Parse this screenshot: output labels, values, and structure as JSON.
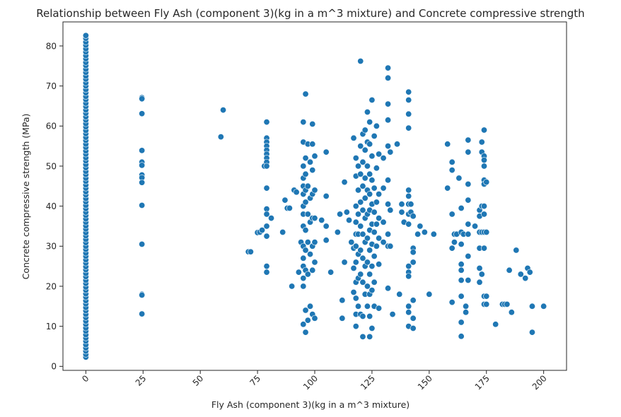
{
  "chart_data": {
    "type": "scatter",
    "title": "Relationship between Fly Ash (component 3)(kg in a m^3 mixture) and Concrete compressive strength",
    "xlabel": "Fly Ash (component 3)(kg in a m^3 mixture)",
    "ylabel": "Concrete compressive strength (MPa)",
    "xlim": [
      -10,
      210
    ],
    "ylim": [
      -1,
      86
    ],
    "xticks": [
      0,
      25,
      50,
      75,
      100,
      125,
      150,
      175,
      200
    ],
    "yticks": [
      0,
      10,
      20,
      30,
      40,
      50,
      60,
      70,
      80
    ],
    "x_tick_rotation": 45,
    "grid": false,
    "legend": "none",
    "marker_color": "#1f77b4",
    "points": [
      [
        0,
        2.3
      ],
      [
        0,
        3.0
      ],
      [
        0,
        3.8
      ],
      [
        0,
        4.6
      ],
      [
        0,
        5.4
      ],
      [
        0,
        6.3
      ],
      [
        0,
        7.1
      ],
      [
        0,
        7.9
      ],
      [
        0,
        8.8
      ],
      [
        0,
        9.6
      ],
      [
        0,
        10.5
      ],
      [
        0,
        11.3
      ],
      [
        0,
        12.2
      ],
      [
        0,
        13.0
      ],
      [
        0,
        13.9
      ],
      [
        0,
        14.7
      ],
      [
        0,
        15.6
      ],
      [
        0,
        16.4
      ],
      [
        0,
        17.3
      ],
      [
        0,
        18.1
      ],
      [
        0,
        19.0
      ],
      [
        0,
        19.8
      ],
      [
        0,
        20.7
      ],
      [
        0,
        21.5
      ],
      [
        0,
        22.4
      ],
      [
        0,
        23.2
      ],
      [
        0,
        24.1
      ],
      [
        0,
        24.9
      ],
      [
        0,
        25.8
      ],
      [
        0,
        26.6
      ],
      [
        0,
        27.5
      ],
      [
        0,
        28.3
      ],
      [
        0,
        29.2
      ],
      [
        0,
        30.0
      ],
      [
        0,
        30.9
      ],
      [
        0,
        31.7
      ],
      [
        0,
        32.6
      ],
      [
        0,
        33.4
      ],
      [
        0,
        34.3
      ],
      [
        0,
        35.1
      ],
      [
        0,
        36.0
      ],
      [
        0,
        36.8
      ],
      [
        0,
        37.7
      ],
      [
        0,
        38.5
      ],
      [
        0,
        39.4
      ],
      [
        0,
        40.2
      ],
      [
        0,
        41.1
      ],
      [
        0,
        41.9
      ],
      [
        0,
        42.8
      ],
      [
        0,
        43.6
      ],
      [
        0,
        44.5
      ],
      [
        0,
        45.3
      ],
      [
        0,
        46.2
      ],
      [
        0,
        47.0
      ],
      [
        0,
        47.9
      ],
      [
        0,
        48.7
      ],
      [
        0,
        49.6
      ],
      [
        0,
        50.4
      ],
      [
        0,
        51.3
      ],
      [
        0,
        52.1
      ],
      [
        0,
        53.0
      ],
      [
        0,
        53.8
      ],
      [
        0,
        54.7
      ],
      [
        0,
        55.5
      ],
      [
        0,
        56.4
      ],
      [
        0,
        57.2
      ],
      [
        0,
        58.1
      ],
      [
        0,
        58.9
      ],
      [
        0,
        59.8
      ],
      [
        0,
        60.6
      ],
      [
        0,
        61.5
      ],
      [
        0,
        62.3
      ],
      [
        0,
        63.2
      ],
      [
        0,
        64.0
      ],
      [
        0,
        64.9
      ],
      [
        0,
        65.7
      ],
      [
        0,
        66.6
      ],
      [
        0,
        67.4
      ],
      [
        0,
        68.3
      ],
      [
        0,
        69.1
      ],
      [
        0,
        70.0
      ],
      [
        0,
        70.8
      ],
      [
        0,
        71.7
      ],
      [
        0,
        72.5
      ],
      [
        0,
        73.4
      ],
      [
        0,
        74.2
      ],
      [
        0,
        75.1
      ],
      [
        0,
        75.9
      ],
      [
        0,
        76.8
      ],
      [
        0,
        77.6
      ],
      [
        0,
        78.5
      ],
      [
        0,
        79.3
      ],
      [
        0,
        80.2
      ],
      [
        0,
        81.0
      ],
      [
        0,
        81.9
      ],
      [
        0,
        82.6
      ],
      [
        24.5,
        67.1
      ],
      [
        24.5,
        66.8
      ],
      [
        24.5,
        63.1
      ],
      [
        24.5,
        53.9
      ],
      [
        24.5,
        51.0
      ],
      [
        24.5,
        50.2
      ],
      [
        24.5,
        47.8
      ],
      [
        24.5,
        47.1
      ],
      [
        24.5,
        45.9
      ],
      [
        24.5,
        40.2
      ],
      [
        24.5,
        30.5
      ],
      [
        24.5,
        18.0
      ],
      [
        24.5,
        17.8
      ],
      [
        24.5,
        13.1
      ],
      [
        59.0,
        57.3
      ],
      [
        60.0,
        64.0
      ],
      [
        71.0,
        28.6
      ],
      [
        72.0,
        28.6
      ],
      [
        75.0,
        33.4
      ],
      [
        76.0,
        33.5
      ],
      [
        77.0,
        34.0
      ],
      [
        78.0,
        50.0
      ],
      [
        79.0,
        61.0
      ],
      [
        79.0,
        57.0
      ],
      [
        79.0,
        56.0
      ],
      [
        79.0,
        55.0
      ],
      [
        79.0,
        54.0
      ],
      [
        79.0,
        53.0
      ],
      [
        79.0,
        52.0
      ],
      [
        79.0,
        51.0
      ],
      [
        79.0,
        50.0
      ],
      [
        79.0,
        44.5
      ],
      [
        79.0,
        39.3
      ],
      [
        79.0,
        38.0
      ],
      [
        79.0,
        35.0
      ],
      [
        79.0,
        32.5
      ],
      [
        79.0,
        25.0
      ],
      [
        79.0,
        23.5
      ],
      [
        81.0,
        37.0
      ],
      [
        86.0,
        33.5
      ],
      [
        87.0,
        41.5
      ],
      [
        88.0,
        39.5
      ],
      [
        89.0,
        39.5
      ],
      [
        90.0,
        20.0
      ],
      [
        91.0,
        44.0
      ],
      [
        92.0,
        43.5
      ],
      [
        93.0,
        23.5
      ],
      [
        94.0,
        31.0
      ],
      [
        95.0,
        61.0
      ],
      [
        95.0,
        56.0
      ],
      [
        95.0,
        50.0
      ],
      [
        95.0,
        47.0
      ],
      [
        95.0,
        45.0
      ],
      [
        95.0,
        43.0
      ],
      [
        95.0,
        40.0
      ],
      [
        95.0,
        38.0
      ],
      [
        95.0,
        35.0
      ],
      [
        95.0,
        30.0
      ],
      [
        95.0,
        27.0
      ],
      [
        95.0,
        25.0
      ],
      [
        95.0,
        22.0
      ],
      [
        95.0,
        20.0
      ],
      [
        95.0,
        10.5
      ],
      [
        96.0,
        68.0
      ],
      [
        96.0,
        52.0
      ],
      [
        96.0,
        48.0
      ],
      [
        96.0,
        44.0
      ],
      [
        96.0,
        41.0
      ],
      [
        96.0,
        34.0
      ],
      [
        96.0,
        29.0
      ],
      [
        96.0,
        24.0
      ],
      [
        96.0,
        14.0
      ],
      [
        96.0,
        8.5
      ],
      [
        97.0,
        55.5
      ],
      [
        97.0,
        45.0
      ],
      [
        97.0,
        38.0
      ],
      [
        97.0,
        31.0
      ],
      [
        97.0,
        23.0
      ],
      [
        97.0,
        11.5
      ],
      [
        98.0,
        51.0
      ],
      [
        98.0,
        42.0
      ],
      [
        98.0,
        36.0
      ],
      [
        98.0,
        28.0
      ],
      [
        98.0,
        15.0
      ],
      [
        99.0,
        60.5
      ],
      [
        99.0,
        55.5
      ],
      [
        99.0,
        49.0
      ],
      [
        99.0,
        43.0
      ],
      [
        99.0,
        37.0
      ],
      [
        99.0,
        30.0
      ],
      [
        99.0,
        24.0
      ],
      [
        99.0,
        13.0
      ],
      [
        100.0,
        52.5
      ],
      [
        100.0,
        44.0
      ],
      [
        100.0,
        37.0
      ],
      [
        100.0,
        31.0
      ],
      [
        100.0,
        26.0
      ],
      [
        100.0,
        12.0
      ],
      [
        103.0,
        36.5
      ],
      [
        105.0,
        53.5
      ],
      [
        105.0,
        42.5
      ],
      [
        105.0,
        35.0
      ],
      [
        105.0,
        31.5
      ],
      [
        107.0,
        23.5
      ],
      [
        110.0,
        33.5
      ],
      [
        111.0,
        38.0
      ],
      [
        112.0,
        16.5
      ],
      [
        112.0,
        12.0
      ],
      [
        113.0,
        26.0
      ],
      [
        113.0,
        46.0
      ],
      [
        114.0,
        38.5
      ],
      [
        115.0,
        36.5
      ],
      [
        116.0,
        31.0
      ],
      [
        117.0,
        57.0
      ],
      [
        117.0,
        29.5
      ],
      [
        117.0,
        24.5
      ],
      [
        117.0,
        18.5
      ],
      [
        118.0,
        52.0
      ],
      [
        118.0,
        47.5
      ],
      [
        118.0,
        40.0
      ],
      [
        118.0,
        36.0
      ],
      [
        118.0,
        33.0
      ],
      [
        118.0,
        30.0
      ],
      [
        118.0,
        26.0
      ],
      [
        118.0,
        21.0
      ],
      [
        118.0,
        17.0
      ],
      [
        118.0,
        13.0
      ],
      [
        118.0,
        10.0
      ],
      [
        119.0,
        50.0
      ],
      [
        119.0,
        44.0
      ],
      [
        119.0,
        38.0
      ],
      [
        119.0,
        33.0
      ],
      [
        119.0,
        28.0
      ],
      [
        119.0,
        22.0
      ],
      [
        119.0,
        15.0
      ],
      [
        120.0,
        76.2
      ],
      [
        120.0,
        55.0
      ],
      [
        120.0,
        48.0
      ],
      [
        120.0,
        41.0
      ],
      [
        120.0,
        35.0
      ],
      [
        120.0,
        29.0
      ],
      [
        120.0,
        23.0
      ],
      [
        120.0,
        13.0
      ],
      [
        121.0,
        58.0
      ],
      [
        121.0,
        51.0
      ],
      [
        121.0,
        45.0
      ],
      [
        121.0,
        39.0
      ],
      [
        121.0,
        33.0
      ],
      [
        121.0,
        27.0
      ],
      [
        121.0,
        21.0
      ],
      [
        121.0,
        12.5
      ],
      [
        121.0,
        7.4
      ],
      [
        122.0,
        59.0
      ],
      [
        122.0,
        54.0
      ],
      [
        122.0,
        47.0
      ],
      [
        122.0,
        42.0
      ],
      [
        122.0,
        37.0
      ],
      [
        122.0,
        31.0
      ],
      [
        122.0,
        25.0
      ],
      [
        122.0,
        18.0
      ],
      [
        123.0,
        63.5
      ],
      [
        123.0,
        56.0
      ],
      [
        123.0,
        50.0
      ],
      [
        123.0,
        44.0
      ],
      [
        123.0,
        38.0
      ],
      [
        123.0,
        32.0
      ],
      [
        123.0,
        26.0
      ],
      [
        123.0,
        20.0
      ],
      [
        123.0,
        15.0
      ],
      [
        124.0,
        61.0
      ],
      [
        124.0,
        55.5
      ],
      [
        124.0,
        48.0
      ],
      [
        124.0,
        43.0
      ],
      [
        124.0,
        39.0
      ],
      [
        124.0,
        34.0
      ],
      [
        124.0,
        29.0
      ],
      [
        124.0,
        23.0
      ],
      [
        124.0,
        18.0
      ],
      [
        124.0,
        12.5
      ],
      [
        124.0,
        7.4
      ],
      [
        125.0,
        66.5
      ],
      [
        125.0,
        52.5
      ],
      [
        125.0,
        46.5
      ],
      [
        125.0,
        40.5
      ],
      [
        125.0,
        35.5
      ],
      [
        125.0,
        30.5
      ],
      [
        125.0,
        25.0
      ],
      [
        125.0,
        19.0
      ],
      [
        125.0,
        9.5
      ],
      [
        126.0,
        57.5
      ],
      [
        126.0,
        44.5
      ],
      [
        126.0,
        38.5
      ],
      [
        126.0,
        33.5
      ],
      [
        126.0,
        27.5
      ],
      [
        126.0,
        21.0
      ],
      [
        126.0,
        15.0
      ],
      [
        127.0,
        60.0
      ],
      [
        127.0,
        49.5
      ],
      [
        127.0,
        41.0
      ],
      [
        127.0,
        35.5
      ],
      [
        127.0,
        30.0
      ],
      [
        128.0,
        53.0
      ],
      [
        128.0,
        43.0
      ],
      [
        128.0,
        37.0
      ],
      [
        128.0,
        32.0
      ],
      [
        128.0,
        25.5
      ],
      [
        128.0,
        14.5
      ],
      [
        130.0,
        52.0
      ],
      [
        130.0,
        44.5
      ],
      [
        130.0,
        36.0
      ],
      [
        130.0,
        31.0
      ],
      [
        132.0,
        74.5
      ],
      [
        132.0,
        72.0
      ],
      [
        132.0,
        65.5
      ],
      [
        132.0,
        61.5
      ],
      [
        132.0,
        55.0
      ],
      [
        132.0,
        46.5
      ],
      [
        132.0,
        40.5
      ],
      [
        132.0,
        33.0
      ],
      [
        132.0,
        30.0
      ],
      [
        132.0,
        19.5
      ],
      [
        133.0,
        53.5
      ],
      [
        133.0,
        39.0
      ],
      [
        133.0,
        30.0
      ],
      [
        134.0,
        13.0
      ],
      [
        136.0,
        55.5
      ],
      [
        137.0,
        18.0
      ],
      [
        138.0,
        40.5
      ],
      [
        138.0,
        38.5
      ],
      [
        139.0,
        36.0
      ],
      [
        141.0,
        68.5
      ],
      [
        141.0,
        66.5
      ],
      [
        141.0,
        63.0
      ],
      [
        141.0,
        59.5
      ],
      [
        141.0,
        44.0
      ],
      [
        141.0,
        42.5
      ],
      [
        141.0,
        40.5
      ],
      [
        141.0,
        38.0
      ],
      [
        141.0,
        35.5
      ],
      [
        141.0,
        25.0
      ],
      [
        141.0,
        23.5
      ],
      [
        141.0,
        22.5
      ],
      [
        141.0,
        15.0
      ],
      [
        141.0,
        13.5
      ],
      [
        141.0,
        10.0
      ],
      [
        142.0,
        40.5
      ],
      [
        142.0,
        38.5
      ],
      [
        143.0,
        29.5
      ],
      [
        143.0,
        28.5
      ],
      [
        143.0,
        37.5
      ],
      [
        143.0,
        26.0
      ],
      [
        143.0,
        16.5
      ],
      [
        143.0,
        12.0
      ],
      [
        143.0,
        9.5
      ],
      [
        145.0,
        33.0
      ],
      [
        146.0,
        35.0
      ],
      [
        148.0,
        33.5
      ],
      [
        150.0,
        18.0
      ],
      [
        152.0,
        33.0
      ],
      [
        158.0,
        55.5
      ],
      [
        158.0,
        44.5
      ],
      [
        160.0,
        51.0
      ],
      [
        160.0,
        49.0
      ],
      [
        160.0,
        38.0
      ],
      [
        160.0,
        29.5
      ],
      [
        160.0,
        16.0
      ],
      [
        161.0,
        33.0
      ],
      [
        161.0,
        31.0
      ],
      [
        162.0,
        33.0
      ],
      [
        163.0,
        47.0
      ],
      [
        164.0,
        39.5
      ],
      [
        164.0,
        33.5
      ],
      [
        164.0,
        30.5
      ],
      [
        164.0,
        25.5
      ],
      [
        164.0,
        24.0
      ],
      [
        164.0,
        21.5
      ],
      [
        164.0,
        17.5
      ],
      [
        164.0,
        11.0
      ],
      [
        164.0,
        7.5
      ],
      [
        165.0,
        33.0
      ],
      [
        166.0,
        13.5
      ],
      [
        166.0,
        15.0
      ],
      [
        167.0,
        56.5
      ],
      [
        167.0,
        53.5
      ],
      [
        167.0,
        45.5
      ],
      [
        167.0,
        41.5
      ],
      [
        167.0,
        35.5
      ],
      [
        167.0,
        33.0
      ],
      [
        167.0,
        27.5
      ],
      [
        167.0,
        21.5
      ],
      [
        170.0,
        35.0
      ],
      [
        172.0,
        39.0
      ],
      [
        172.0,
        37.5
      ],
      [
        172.0,
        33.5
      ],
      [
        172.0,
        29.5
      ],
      [
        172.0,
        24.5
      ],
      [
        172.0,
        21.0
      ],
      [
        173.0,
        56.0
      ],
      [
        173.0,
        53.5
      ],
      [
        173.0,
        40.0
      ],
      [
        173.0,
        33.5
      ],
      [
        173.0,
        23.0
      ],
      [
        174.0,
        59.0
      ],
      [
        174.0,
        52.5
      ],
      [
        174.0,
        51.5
      ],
      [
        174.0,
        50.0
      ],
      [
        174.0,
        46.5
      ],
      [
        174.0,
        45.5
      ],
      [
        174.0,
        40.0
      ],
      [
        174.0,
        38.0
      ],
      [
        174.0,
        33.5
      ],
      [
        174.0,
        29.5
      ],
      [
        174.0,
        17.5
      ],
      [
        174.0,
        15.5
      ],
      [
        175.0,
        46.0
      ],
      [
        175.0,
        33.5
      ],
      [
        175.0,
        17.5
      ],
      [
        175.0,
        15.5
      ],
      [
        179.0,
        10.5
      ],
      [
        182.0,
        15.5
      ],
      [
        183.0,
        15.5
      ],
      [
        184.0,
        15.5
      ],
      [
        185.0,
        24.0
      ],
      [
        186.0,
        13.5
      ],
      [
        188.0,
        29.0
      ],
      [
        190.0,
        23.0
      ],
      [
        192.0,
        22.0
      ],
      [
        193.0,
        24.5
      ],
      [
        194.0,
        23.5
      ],
      [
        195.0,
        8.5
      ],
      [
        195.0,
        15.0
      ],
      [
        200.0,
        15.0
      ]
    ]
  }
}
